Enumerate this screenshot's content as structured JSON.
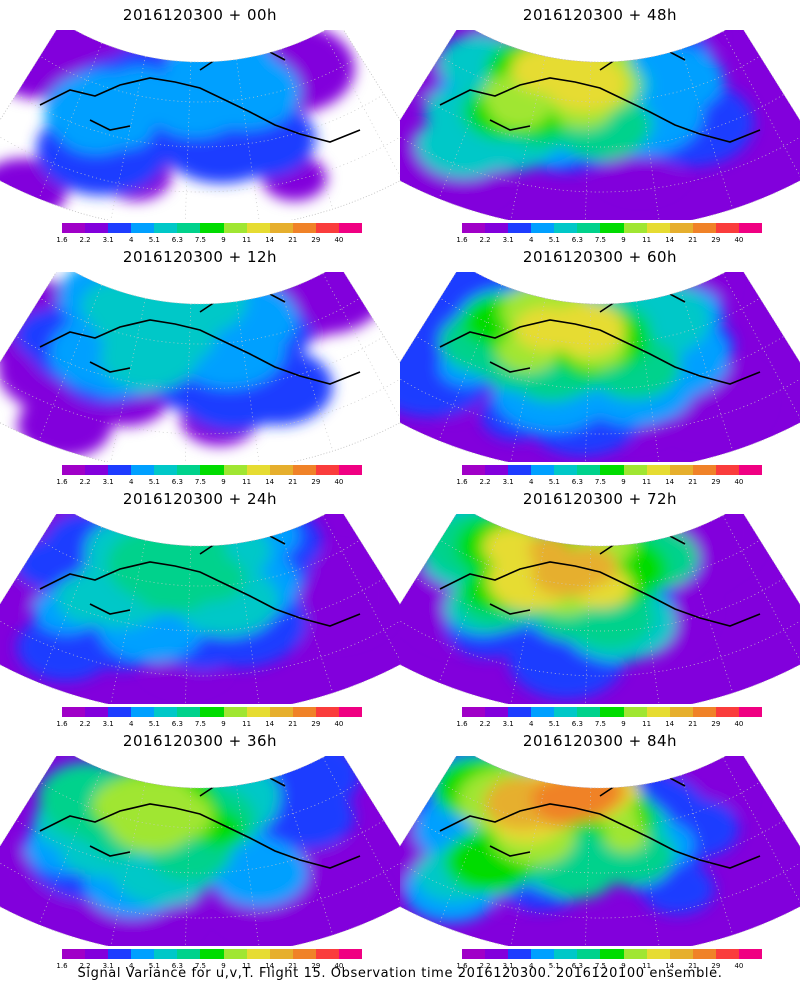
{
  "panels": [
    {
      "title": "2016120300 + 00h",
      "intensity": 0.12
    },
    {
      "title": "2016120300 + 48h",
      "intensity": 0.62
    },
    {
      "title": "2016120300 + 12h",
      "intensity": 0.25
    },
    {
      "title": "2016120300 + 60h",
      "intensity": 0.72
    },
    {
      "title": "2016120300 + 24h",
      "intensity": 0.38
    },
    {
      "title": "2016120300 + 72h",
      "intensity": 0.8
    },
    {
      "title": "2016120300 + 36h",
      "intensity": 0.5
    },
    {
      "title": "2016120300 + 84h",
      "intensity": 0.86
    }
  ],
  "colorbar": {
    "labels": [
      "1.6",
      "2.2",
      "3.1",
      "4",
      "5.1",
      "6.3",
      "7.5",
      "9",
      "11",
      "14",
      "21",
      "29",
      "40"
    ],
    "colors": [
      "#a000c8",
      "#8200dc",
      "#1e3cff",
      "#00a0ff",
      "#00c8c8",
      "#00d28c",
      "#00dc00",
      "#a0e632",
      "#e6dc32",
      "#e6af2d",
      "#f08228",
      "#fa3c3c",
      "#f00082"
    ]
  },
  "footer": "Signal Variance for u,v,T. Flight 15. Observation time 2016120300. 2016120100 ensemble."
}
